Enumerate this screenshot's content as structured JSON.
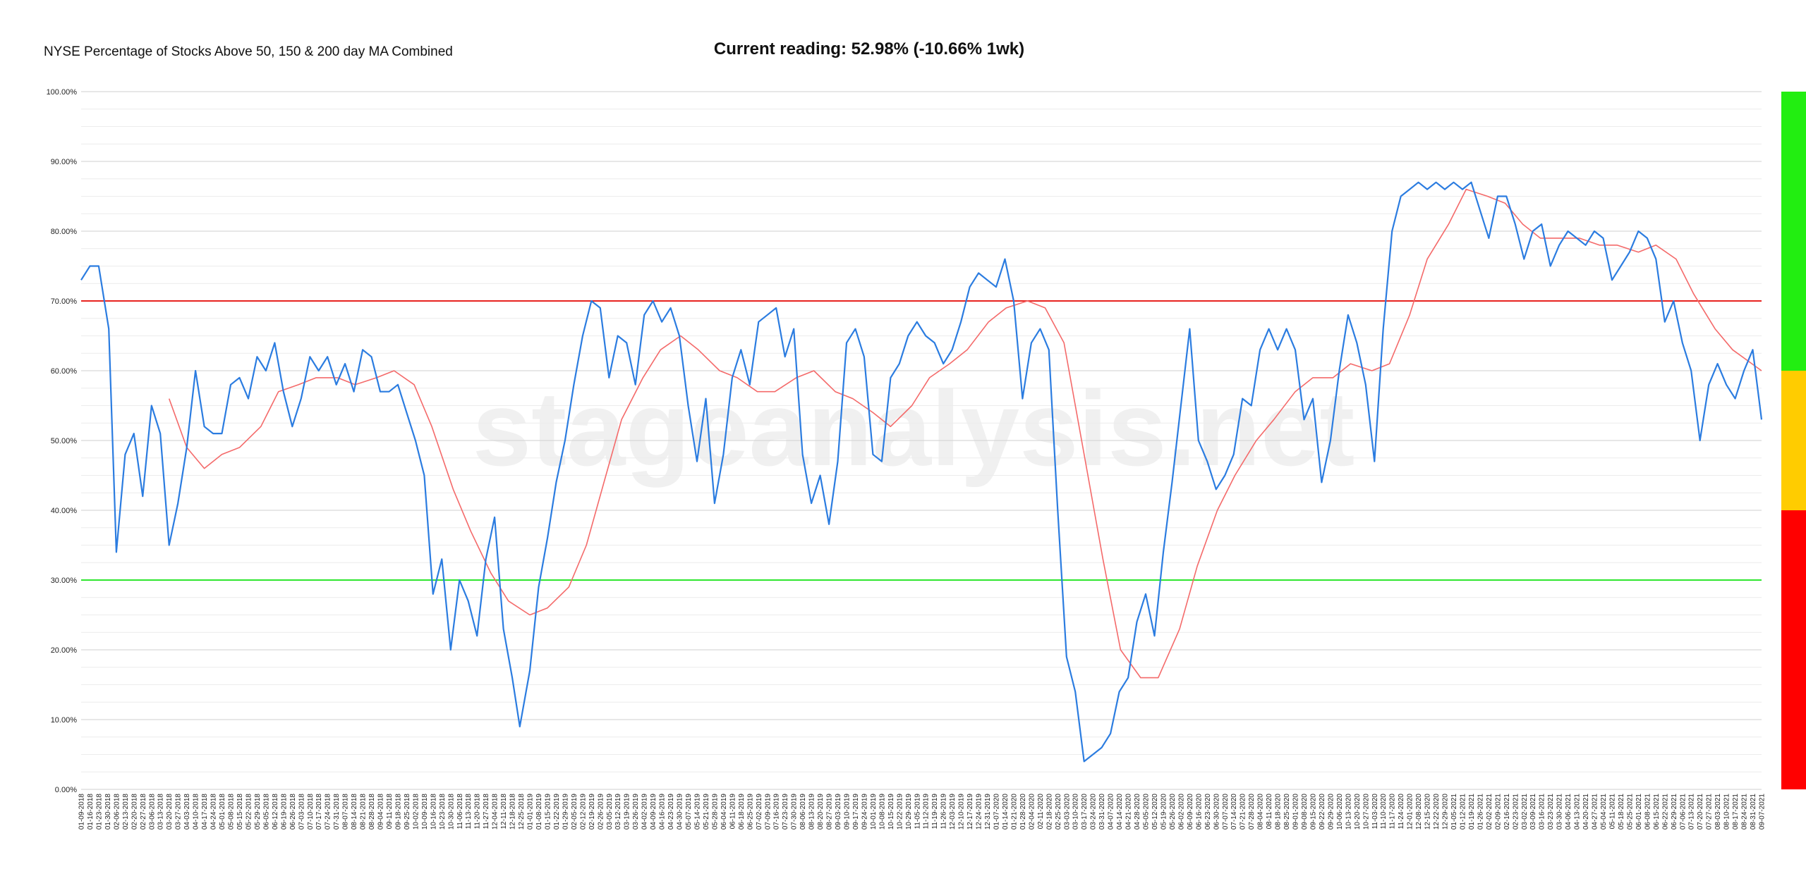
{
  "chart_data": {
    "type": "line",
    "title": "NYSE Percentage of Stocks Above 50, 150 & 200 day MA Combined",
    "subtitle": "Current reading: 52.98% (-10.66% 1wk)",
    "watermark": "stageanalysis.net",
    "ylim": [
      0,
      100
    ],
    "yticks": [
      0,
      10,
      20,
      30,
      40,
      50,
      60,
      70,
      80,
      90,
      100
    ],
    "ytick_labels": [
      "0.00%",
      "10.00%",
      "20.00%",
      "30.00%",
      "40.00%",
      "50.00%",
      "60.00%",
      "70.00%",
      "80.00%",
      "90.00%",
      "100.00%"
    ],
    "grid": true,
    "reference_lines": [
      {
        "value": 70,
        "color": "#e8231f"
      },
      {
        "value": 30,
        "color": "#2ee62e"
      }
    ],
    "zones": [
      {
        "from": 60,
        "to": 100,
        "color": "#22ee11"
      },
      {
        "from": 40,
        "to": 60,
        "color": "#ffcc00"
      },
      {
        "from": 0,
        "to": 40,
        "color": "#ff0000"
      }
    ],
    "x_start": "01-09-2018",
    "x_end": "09-07-2021",
    "series": [
      {
        "color": "#2b7ce0",
        "points": [
          [
            "01-09-2018",
            73
          ],
          [
            "01-16-2018",
            75
          ],
          [
            "01-23-2018",
            75
          ],
          [
            "01-31-2018",
            66
          ],
          [
            "02-06-2018",
            34
          ],
          [
            "02-13-2018",
            48
          ],
          [
            "02-20-2018",
            51
          ],
          [
            "02-27-2018",
            42
          ],
          [
            "03-06-2018",
            55
          ],
          [
            "03-13-2018",
            51
          ],
          [
            "03-20-2018",
            35
          ],
          [
            "03-27-2018",
            41
          ],
          [
            "04-03-2018",
            49
          ],
          [
            "04-10-2018",
            60
          ],
          [
            "04-17-2018",
            52
          ],
          [
            "04-24-2018",
            51
          ],
          [
            "05-01-2018",
            51
          ],
          [
            "05-08-2018",
            58
          ],
          [
            "05-15-2018",
            59
          ],
          [
            "05-22-2018",
            56
          ],
          [
            "05-29-2018",
            62
          ],
          [
            "06-05-2018",
            60
          ],
          [
            "06-12-2018",
            64
          ],
          [
            "06-19-2018",
            57
          ],
          [
            "06-26-2018",
            52
          ],
          [
            "07-03-2018",
            56
          ],
          [
            "07-10-2018",
            62
          ],
          [
            "07-17-2018",
            60
          ],
          [
            "07-24-2018",
            62
          ],
          [
            "07-31-2018",
            58
          ],
          [
            "08-07-2018",
            61
          ],
          [
            "08-14-2018",
            57
          ],
          [
            "08-21-2018",
            63
          ],
          [
            "08-28-2018",
            62
          ],
          [
            "09-04-2018",
            57
          ],
          [
            "09-11-2018",
            57
          ],
          [
            "09-18-2018",
            58
          ],
          [
            "09-25-2018",
            54
          ],
          [
            "10-02-2018",
            50
          ],
          [
            "10-09-2018",
            45
          ],
          [
            "10-16-2018",
            28
          ],
          [
            "10-23-2018",
            33
          ],
          [
            "10-30-2018",
            20
          ],
          [
            "11-06-2018",
            30
          ],
          [
            "11-13-2018",
            27
          ],
          [
            "11-20-2018",
            22
          ],
          [
            "11-27-2018",
            33
          ],
          [
            "12-04-2018",
            39
          ],
          [
            "12-11-2018",
            23
          ],
          [
            "12-18-2018",
            16
          ],
          [
            "12-24-2018",
            9
          ],
          [
            "01-01-2019",
            17
          ],
          [
            "01-08-2019",
            29
          ],
          [
            "01-15-2019",
            36
          ],
          [
            "01-22-2019",
            44
          ],
          [
            "01-29-2019",
            50
          ],
          [
            "02-05-2019",
            58
          ],
          [
            "02-12-2019",
            65
          ],
          [
            "02-19-2019",
            70
          ],
          [
            "02-26-2019",
            69
          ],
          [
            "03-05-2019",
            59
          ],
          [
            "03-12-2019",
            65
          ],
          [
            "03-19-2019",
            64
          ],
          [
            "03-26-2019",
            58
          ],
          [
            "04-02-2019",
            68
          ],
          [
            "04-09-2019",
            70
          ],
          [
            "04-16-2019",
            67
          ],
          [
            "04-23-2019",
            69
          ],
          [
            "04-30-2019",
            65
          ],
          [
            "05-07-2019",
            55
          ],
          [
            "05-14-2019",
            47
          ],
          [
            "05-21-2019",
            56
          ],
          [
            "05-28-2019",
            41
          ],
          [
            "06-04-2019",
            48
          ],
          [
            "06-11-2019",
            59
          ],
          [
            "06-18-2019",
            63
          ],
          [
            "06-25-2019",
            58
          ],
          [
            "07-02-2019",
            67
          ],
          [
            "07-09-2019",
            68
          ],
          [
            "07-16-2019",
            69
          ],
          [
            "07-23-2019",
            62
          ],
          [
            "07-30-2019",
            66
          ],
          [
            "08-06-2019",
            48
          ],
          [
            "08-13-2019",
            41
          ],
          [
            "08-20-2019",
            45
          ],
          [
            "08-27-2019",
            38
          ],
          [
            "09-03-2019",
            47
          ],
          [
            "09-10-2019",
            64
          ],
          [
            "09-17-2019",
            66
          ],
          [
            "09-24-2019",
            62
          ],
          [
            "10-01-2019",
            48
          ],
          [
            "10-08-2019",
            47
          ],
          [
            "10-15-2019",
            59
          ],
          [
            "10-22-2019",
            61
          ],
          [
            "10-29-2019",
            65
          ],
          [
            "11-05-2019",
            67
          ],
          [
            "11-12-2019",
            65
          ],
          [
            "11-19-2019",
            64
          ],
          [
            "11-26-2019",
            61
          ],
          [
            "12-03-2019",
            63
          ],
          [
            "12-10-2019",
            67
          ],
          [
            "12-17-2019",
            72
          ],
          [
            "12-24-2019",
            74
          ],
          [
            "12-31-2019",
            73
          ],
          [
            "01-07-2020",
            72
          ],
          [
            "01-14-2020",
            76
          ],
          [
            "01-21-2020",
            70
          ],
          [
            "01-28-2020",
            56
          ],
          [
            "02-04-2020",
            64
          ],
          [
            "02-11-2020",
            66
          ],
          [
            "02-18-2020",
            63
          ],
          [
            "02-25-2020",
            40
          ],
          [
            "03-03-2020",
            19
          ],
          [
            "03-10-2020",
            14
          ],
          [
            "03-17-2020",
            4
          ],
          [
            "03-24-2020",
            5
          ],
          [
            "03-31-2020",
            6
          ],
          [
            "04-07-2020",
            8
          ],
          [
            "04-14-2020",
            14
          ],
          [
            "04-21-2020",
            16
          ],
          [
            "04-28-2020",
            24
          ],
          [
            "05-05-2020",
            28
          ],
          [
            "05-12-2020",
            22
          ],
          [
            "05-19-2020",
            34
          ],
          [
            "05-26-2020",
            44
          ],
          [
            "06-02-2020",
            55
          ],
          [
            "06-09-2020",
            66
          ],
          [
            "06-16-2020",
            50
          ],
          [
            "06-23-2020",
            47
          ],
          [
            "06-30-2020",
            43
          ],
          [
            "07-07-2020",
            45
          ],
          [
            "07-14-2020",
            48
          ],
          [
            "07-21-2020",
            56
          ],
          [
            "07-28-2020",
            55
          ],
          [
            "08-04-2020",
            63
          ],
          [
            "08-11-2020",
            66
          ],
          [
            "08-18-2020",
            63
          ],
          [
            "08-25-2020",
            66
          ],
          [
            "09-01-2020",
            63
          ],
          [
            "09-08-2020",
            53
          ],
          [
            "09-15-2020",
            56
          ],
          [
            "09-22-2020",
            44
          ],
          [
            "09-29-2020",
            50
          ],
          [
            "10-06-2020",
            60
          ],
          [
            "10-13-2020",
            68
          ],
          [
            "10-20-2020",
            64
          ],
          [
            "10-27-2020",
            58
          ],
          [
            "11-03-2020",
            47
          ],
          [
            "11-10-2020",
            66
          ],
          [
            "11-17-2020",
            80
          ],
          [
            "11-24-2020",
            85
          ],
          [
            "12-01-2020",
            86
          ],
          [
            "12-08-2020",
            87
          ],
          [
            "12-15-2020",
            86
          ],
          [
            "12-22-2020",
            87
          ],
          [
            "12-29-2020",
            86
          ],
          [
            "01-05-2021",
            87
          ],
          [
            "01-12-2021",
            86
          ],
          [
            "01-19-2021",
            87
          ],
          [
            "01-26-2021",
            83
          ],
          [
            "02-02-2021",
            79
          ],
          [
            "02-09-2021",
            85
          ],
          [
            "02-16-2021",
            85
          ],
          [
            "02-23-2021",
            81
          ],
          [
            "03-02-2021",
            76
          ],
          [
            "03-09-2021",
            80
          ],
          [
            "03-16-2021",
            81
          ],
          [
            "03-23-2021",
            75
          ],
          [
            "03-30-2021",
            78
          ],
          [
            "04-06-2021",
            80
          ],
          [
            "04-13-2021",
            79
          ],
          [
            "04-20-2021",
            78
          ],
          [
            "04-27-2021",
            80
          ],
          [
            "05-04-2021",
            79
          ],
          [
            "05-11-2021",
            73
          ],
          [
            "05-18-2021",
            75
          ],
          [
            "05-25-2021",
            77
          ],
          [
            "06-01-2021",
            80
          ],
          [
            "06-08-2021",
            79
          ],
          [
            "06-15-2021",
            76
          ],
          [
            "06-22-2021",
            67
          ],
          [
            "06-29-2021",
            70
          ],
          [
            "07-06-2021",
            64
          ],
          [
            "07-13-2021",
            60
          ],
          [
            "07-20-2021",
            50
          ],
          [
            "07-27-2021",
            58
          ],
          [
            "08-03-2021",
            61
          ],
          [
            "08-10-2021",
            58
          ],
          [
            "08-17-2021",
            56
          ],
          [
            "08-24-2021",
            60
          ],
          [
            "08-31-2021",
            63
          ],
          [
            "09-07-2021",
            53
          ]
        ]
      },
      {
        "color": "#f46a6a",
        "points": [
          [
            "03-20-2018",
            56
          ],
          [
            "04-03-2018",
            49
          ],
          [
            "04-17-2018",
            46
          ],
          [
            "05-01-2018",
            48
          ],
          [
            "05-15-2018",
            49
          ],
          [
            "06-01-2018",
            52
          ],
          [
            "06-15-2018",
            57
          ],
          [
            "07-01-2018",
            58
          ],
          [
            "07-15-2018",
            59
          ],
          [
            "08-01-2018",
            59
          ],
          [
            "08-15-2018",
            58
          ],
          [
            "09-01-2018",
            59
          ],
          [
            "09-15-2018",
            60
          ],
          [
            "10-01-2018",
            58
          ],
          [
            "10-15-2018",
            52
          ],
          [
            "11-01-2018",
            43
          ],
          [
            "11-15-2018",
            37
          ],
          [
            "12-01-2018",
            31
          ],
          [
            "12-15-2018",
            27
          ],
          [
            "01-01-2019",
            25
          ],
          [
            "01-15-2019",
            26
          ],
          [
            "02-01-2019",
            29
          ],
          [
            "02-15-2019",
            35
          ],
          [
            "03-01-2019",
            44
          ],
          [
            "03-15-2019",
            53
          ],
          [
            "04-01-2019",
            59
          ],
          [
            "04-15-2019",
            63
          ],
          [
            "05-01-2019",
            65
          ],
          [
            "05-15-2019",
            63
          ],
          [
            "06-01-2019",
            60
          ],
          [
            "06-15-2019",
            59
          ],
          [
            "07-01-2019",
            57
          ],
          [
            "07-15-2019",
            57
          ],
          [
            "08-01-2019",
            59
          ],
          [
            "08-15-2019",
            60
          ],
          [
            "09-01-2019",
            57
          ],
          [
            "09-15-2019",
            56
          ],
          [
            "10-01-2019",
            54
          ],
          [
            "10-15-2019",
            52
          ],
          [
            "11-01-2019",
            55
          ],
          [
            "11-15-2019",
            59
          ],
          [
            "12-01-2019",
            61
          ],
          [
            "12-15-2019",
            63
          ],
          [
            "01-01-2020",
            67
          ],
          [
            "01-15-2020",
            69
          ],
          [
            "02-01-2020",
            70
          ],
          [
            "02-15-2020",
            69
          ],
          [
            "03-01-2020",
            64
          ],
          [
            "03-15-2020",
            50
          ],
          [
            "04-01-2020",
            33
          ],
          [
            "04-15-2020",
            20
          ],
          [
            "05-01-2020",
            16
          ],
          [
            "05-15-2020",
            16
          ],
          [
            "06-01-2020",
            23
          ],
          [
            "06-15-2020",
            32
          ],
          [
            "07-01-2020",
            40
          ],
          [
            "07-15-2020",
            45
          ],
          [
            "08-01-2020",
            50
          ],
          [
            "08-15-2020",
            53
          ],
          [
            "09-01-2020",
            57
          ],
          [
            "09-15-2020",
            59
          ],
          [
            "10-01-2020",
            59
          ],
          [
            "10-15-2020",
            61
          ],
          [
            "11-01-2020",
            60
          ],
          [
            "11-15-2020",
            61
          ],
          [
            "12-01-2020",
            68
          ],
          [
            "12-15-2020",
            76
          ],
          [
            "01-01-2021",
            81
          ],
          [
            "01-15-2021",
            86
          ],
          [
            "02-01-2021",
            85
          ],
          [
            "02-15-2021",
            84
          ],
          [
            "03-01-2021",
            81
          ],
          [
            "03-15-2021",
            79
          ],
          [
            "04-01-2021",
            79
          ],
          [
            "04-15-2021",
            79
          ],
          [
            "05-01-2021",
            78
          ],
          [
            "05-15-2021",
            78
          ],
          [
            "06-01-2021",
            77
          ],
          [
            "06-15-2021",
            78
          ],
          [
            "07-01-2021",
            76
          ],
          [
            "07-15-2021",
            71
          ],
          [
            "08-01-2021",
            66
          ],
          [
            "08-15-2021",
            63
          ],
          [
            "09-07-2021",
            60
          ]
        ]
      }
    ]
  }
}
